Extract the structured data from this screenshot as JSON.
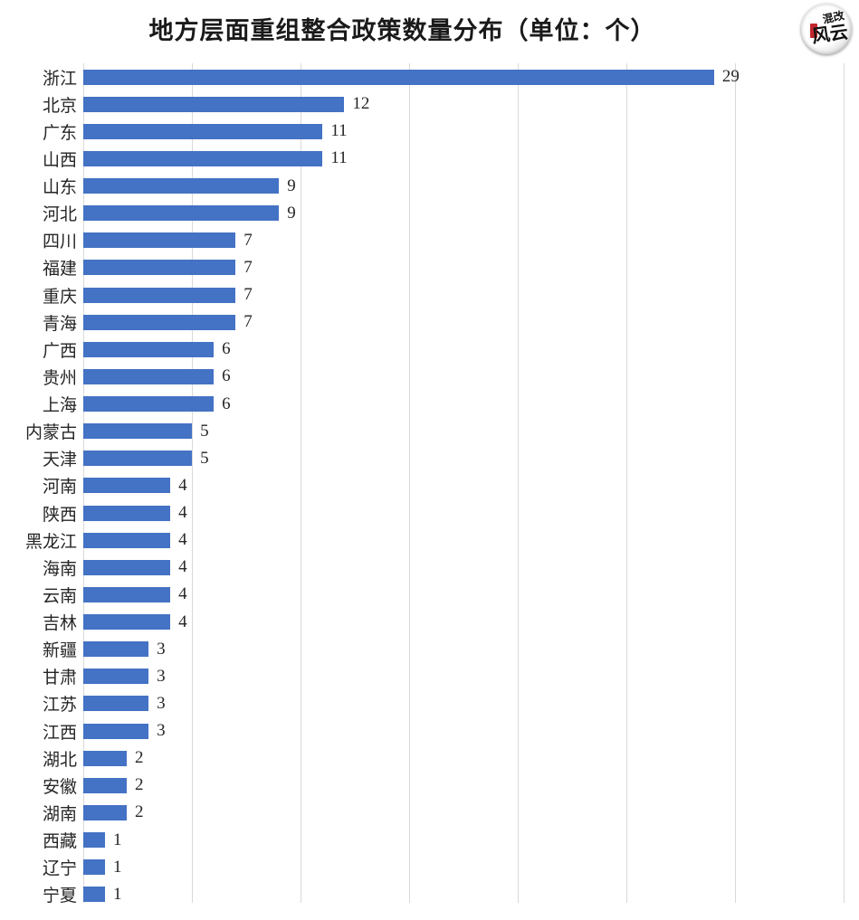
{
  "title": "地方层面重组整合政策数量分布（单位：个）",
  "logo": {
    "line1": "混改",
    "line2": "风云"
  },
  "chart_data": {
    "type": "bar",
    "orientation": "horizontal",
    "title": "地方层面重组整合政策数量分布（单位：个）",
    "categories": [
      "浙江",
      "北京",
      "广东",
      "山西",
      "山东",
      "河北",
      "四川",
      "福建",
      "重庆",
      "青海",
      "广西",
      "贵州",
      "上海",
      "内蒙古",
      "天津",
      "河南",
      "陕西",
      "黑龙江",
      "海南",
      "云南",
      "吉林",
      "新疆",
      "甘肃",
      "江苏",
      "江西",
      "湖北",
      "安徽",
      "湖南",
      "西藏",
      "辽宁",
      "宁夏"
    ],
    "values": [
      29,
      12,
      11,
      11,
      9,
      9,
      7,
      7,
      7,
      7,
      6,
      6,
      6,
      5,
      5,
      4,
      4,
      4,
      4,
      4,
      4,
      3,
      3,
      3,
      3,
      2,
      2,
      2,
      1,
      1,
      1
    ],
    "xlabel": "",
    "ylabel": "",
    "xlim": [
      0,
      35
    ],
    "gridline_interval": 5,
    "grid": true,
    "legend": false,
    "bar_color": "#4472C4",
    "gridline_color": "#D9D9D9",
    "value_labels_shown": true
  }
}
